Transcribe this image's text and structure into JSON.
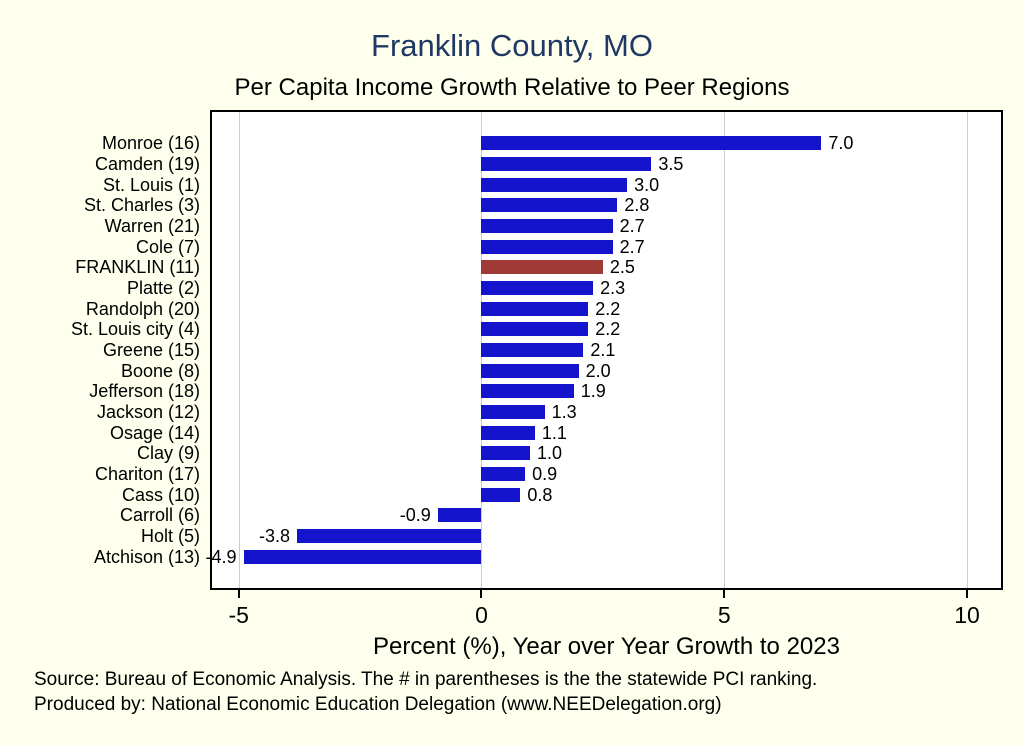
{
  "title": "Franklin County, MO",
  "subtitle": "Per Capita Income Growth Relative to Peer Regions",
  "colors": {
    "background": "#FFFFEE",
    "title": "#1F3864",
    "bar": "#1414CC",
    "highlight": "#A03A36",
    "gridline": "#CCCCCC"
  },
  "chart_data": {
    "type": "bar",
    "orientation": "horizontal",
    "title": "Franklin County, MO",
    "subtitle": "Per Capita Income Growth Relative to Peer Regions",
    "categories": [
      "Monroe (16)",
      "Camden (19)",
      "St. Louis (1)",
      "St. Charles (3)",
      "Warren (21)",
      "Cole (7)",
      "FRANKLIN (11)",
      "Platte (2)",
      "Randolph (20)",
      "St. Louis city (4)",
      "Greene (15)",
      "Boone (8)",
      "Jefferson (18)",
      "Jackson (12)",
      "Osage (14)",
      "Clay (9)",
      "Chariton (17)",
      "Cass (10)",
      "Carroll (6)",
      "Holt (5)",
      "Atchison (13)"
    ],
    "values": [
      7.0,
      3.5,
      3.0,
      2.8,
      2.7,
      2.7,
      2.5,
      2.3,
      2.2,
      2.2,
      2.1,
      2.0,
      1.9,
      1.3,
      1.1,
      1.0,
      0.9,
      0.8,
      -0.9,
      -3.8,
      -4.9
    ],
    "highlight_category": "FRANKLIN (11)",
    "bar_color": "#1414CC",
    "highlight_color": "#A03A36",
    "xlabel": "Percent (%), Year over Year Growth to 2023",
    "xticks": [
      -5,
      0,
      5,
      10
    ],
    "xlim": [
      -5.55,
      10.7
    ],
    "grid": true,
    "legend": "none"
  },
  "footer": {
    "source": "Source: Bureau of Economic Analysis. The # in parentheses is the the statewide PCI ranking.",
    "produced": "Produced by: National Economic Education Delegation (www.NEEDelegation.org)"
  }
}
